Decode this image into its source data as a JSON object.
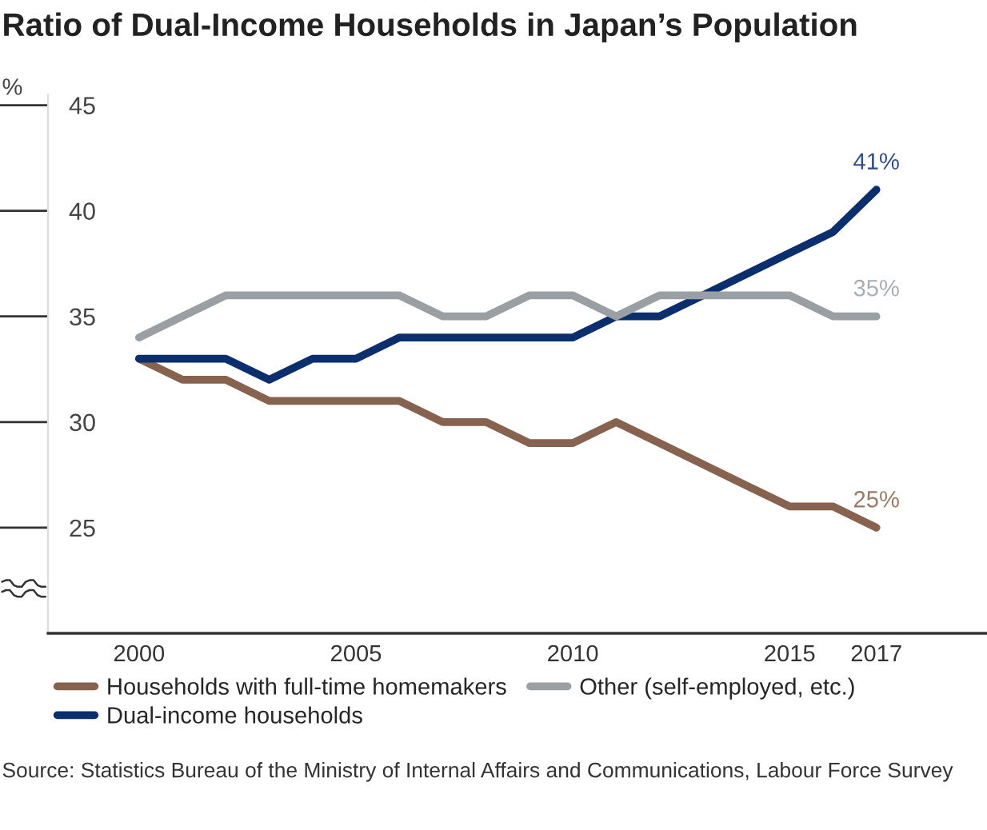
{
  "chart_data": {
    "type": "line",
    "title": "Ratio of Dual-Income Households in Japan’s Population",
    "ylabel": "%",
    "x": [
      2000,
      2001,
      2002,
      2003,
      2004,
      2005,
      2006,
      2007,
      2008,
      2009,
      2010,
      2011,
      2012,
      2013,
      2014,
      2015,
      2016,
      2017
    ],
    "series": [
      {
        "name": "Households with full-time homemakers",
        "color": "#87634f",
        "values": [
          33,
          32,
          32,
          31,
          31,
          31,
          31,
          30,
          30,
          29,
          29,
          30,
          29,
          28,
          27,
          26,
          26,
          25
        ],
        "value_labels": [
          null,
          null,
          null,
          null,
          null,
          null,
          null,
          null,
          null,
          null,
          null,
          null,
          null,
          null,
          null,
          null,
          null,
          "25%"
        ]
      },
      {
        "name": "Dual-income households",
        "color": "#0b2e6e",
        "values": [
          33,
          33,
          33,
          32,
          33,
          33,
          34,
          34,
          34,
          34,
          34,
          35,
          35,
          36,
          37,
          38,
          39,
          41
        ],
        "value_labels": [
          null,
          null,
          null,
          null,
          null,
          null,
          null,
          null,
          null,
          null,
          null,
          null,
          null,
          null,
          null,
          null,
          null,
          "41%"
        ]
      },
      {
        "name": "Other (self-employed, etc.)",
        "color": "#9a9fa4",
        "values": [
          34,
          35,
          36,
          36,
          36,
          36,
          36,
          35,
          35,
          36,
          36,
          35,
          36,
          36,
          36,
          36,
          35,
          35
        ],
        "value_labels": [
          null,
          null,
          null,
          null,
          null,
          null,
          null,
          null,
          null,
          null,
          null,
          null,
          null,
          null,
          null,
          null,
          null,
          "35%"
        ]
      }
    ],
    "xlim": [
      1997.9,
      2019.55
    ],
    "xticks": [
      2000,
      2005,
      2010,
      2015,
      2017
    ],
    "ylim": [
      20,
      45.5
    ],
    "yticks": [
      25,
      30,
      35,
      40,
      45
    ],
    "annotations": [
      "Source: Statistics Bureau of the Ministry of Internal Affairs and Communications, Labour Force Survey"
    ],
    "grid": false,
    "legend": "bottom",
    "marker": "none",
    "line_style": "solid"
  }
}
